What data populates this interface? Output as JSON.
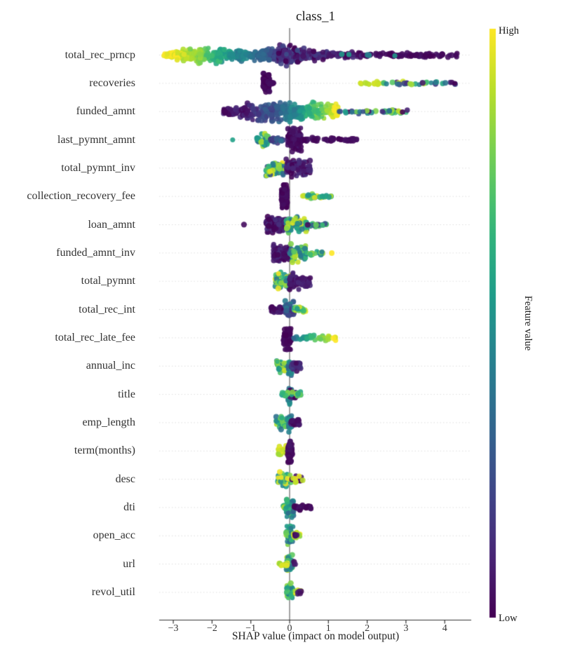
{
  "chart_data": {
    "type": "beeswarm",
    "title": "class_1",
    "xlabel": "SHAP value (impact on model output)",
    "x_ticks": [
      -3,
      -2,
      -1,
      0,
      1,
      2,
      3,
      4
    ],
    "x_tick_labels": [
      "−3",
      "−2",
      "−1",
      "0",
      "1",
      "2",
      "3",
      "4"
    ],
    "x_range": [
      -3.36,
      4.68
    ],
    "grid": "dotted-horizontal",
    "zero_line": true,
    "colorbar": {
      "high": "High",
      "low": "Low",
      "label": "Feature value"
    },
    "colormap": [
      "#440154",
      "#482878",
      "#3e4989",
      "#31688e",
      "#26828e",
      "#1f9e89",
      "#35b779",
      "#6ece58",
      "#b5de2b",
      "#fde725"
    ],
    "cluster_format": "[shap_min, shap_max, n_points, vertical_spread_px, color_t_min, color_t_max, mode(r=random,g=gradient-with-x)]",
    "features": [
      {
        "name": "total_rec_prncp",
        "clusters": [
          [
            -3.25,
            -2.8,
            35,
            3.5,
            1.0,
            0.92,
            "g"
          ],
          [
            -2.9,
            -2.3,
            70,
            7,
            0.97,
            0.75,
            "g"
          ],
          [
            -2.4,
            -1.75,
            80,
            9,
            0.85,
            0.55,
            "g"
          ],
          [
            -1.85,
            -1.2,
            70,
            8,
            0.65,
            0.4,
            "g"
          ],
          [
            -1.3,
            -0.65,
            55,
            6.5,
            0.5,
            0.25,
            "g"
          ],
          [
            -0.75,
            -0.2,
            60,
            8,
            0.35,
            0.12,
            "g"
          ],
          [
            -0.3,
            0.3,
            110,
            12,
            0.0,
            0.25,
            "r"
          ],
          [
            0.3,
            1.0,
            60,
            7,
            0.0,
            0.2,
            "r"
          ],
          [
            1.0,
            1.9,
            45,
            4,
            0.0,
            0.12,
            "r"
          ],
          [
            1.9,
            4.35,
            90,
            2.2,
            0.0,
            0.06,
            "r"
          ],
          [
            1.3,
            3.3,
            6,
            2,
            0.35,
            0.55,
            "r"
          ]
        ]
      },
      {
        "name": "recoveries",
        "clusters": [
          [
            -0.68,
            -0.52,
            90,
            11,
            0.0,
            0.04,
            "r"
          ],
          [
            -0.52,
            -0.33,
            12,
            2,
            0.0,
            0.04,
            "r"
          ],
          [
            1.82,
            2.4,
            14,
            2.2,
            0.85,
            1.0,
            "r"
          ],
          [
            2.4,
            4.3,
            34,
            2.2,
            0.0,
            1.0,
            "r"
          ]
        ]
      },
      {
        "name": "funded_amnt",
        "clusters": [
          [
            -1.75,
            -1.1,
            45,
            5.5,
            0.0,
            0.12,
            "r"
          ],
          [
            -1.2,
            -0.45,
            80,
            9.5,
            0.05,
            0.3,
            "g"
          ],
          [
            -0.5,
            0.15,
            90,
            11,
            0.2,
            0.5,
            "g"
          ],
          [
            0.1,
            0.75,
            80,
            10.5,
            0.4,
            0.8,
            "g"
          ],
          [
            0.7,
            1.25,
            55,
            8,
            0.7,
            1.0,
            "g"
          ],
          [
            1.25,
            3.1,
            40,
            2.4,
            0.0,
            1.0,
            "r"
          ]
        ]
      },
      {
        "name": "last_pymnt_amnt",
        "clusters": [
          [
            -1.47,
            -1.43,
            1,
            0.5,
            0.55,
            0.6,
            "r"
          ],
          [
            -0.85,
            -0.5,
            45,
            8,
            0.35,
            1.0,
            "r"
          ],
          [
            -0.5,
            -0.1,
            30,
            3,
            0.08,
            0.35,
            "r"
          ],
          [
            -0.05,
            0.3,
            100,
            13,
            0.0,
            0.08,
            "r"
          ],
          [
            0.3,
            1.8,
            55,
            2.4,
            0.0,
            0.05,
            "r"
          ]
        ]
      },
      {
        "name": "total_pymnt_inv",
        "clusters": [
          [
            -0.62,
            -0.1,
            70,
            10,
            0.25,
            1.0,
            "r"
          ],
          [
            -0.1,
            0.55,
            85,
            11,
            0.0,
            0.15,
            "r"
          ]
        ]
      },
      {
        "name": "collection_recovery_fee",
        "clusters": [
          [
            -0.22,
            -0.06,
            75,
            12.5,
            0.0,
            0.05,
            "r"
          ],
          [
            0.33,
            1.08,
            26,
            2.4,
            0.45,
            1.0,
            "r"
          ]
        ]
      },
      {
        "name": "loan_amnt",
        "clusters": [
          [
            -1.18,
            -1.14,
            1,
            0.5,
            0.0,
            0.05,
            "r"
          ],
          [
            -0.62,
            -0.1,
            90,
            10,
            0.0,
            0.15,
            "r"
          ],
          [
            -0.1,
            0.45,
            80,
            10,
            0.3,
            1.0,
            "r"
          ],
          [
            0.45,
            0.95,
            22,
            2.4,
            0.0,
            0.8,
            "r"
          ]
        ]
      },
      {
        "name": "funded_amnt_inv",
        "clusters": [
          [
            -0.42,
            0.0,
            90,
            11,
            0.0,
            0.15,
            "r"
          ],
          [
            0.0,
            0.42,
            70,
            10,
            0.3,
            0.95,
            "r"
          ],
          [
            0.42,
            0.88,
            18,
            2.4,
            0.4,
            1.0,
            "r"
          ],
          [
            1.08,
            1.12,
            1,
            0.5,
            0.95,
            1.0,
            "r"
          ]
        ]
      },
      {
        "name": "total_pymnt",
        "clusters": [
          [
            -0.38,
            0.05,
            60,
            10,
            0.35,
            1.0,
            "r"
          ],
          [
            0.0,
            0.55,
            70,
            9,
            0.0,
            0.12,
            "r"
          ]
        ]
      },
      {
        "name": "total_rec_int",
        "clusters": [
          [
            -0.48,
            -0.12,
            40,
            3.5,
            0.0,
            0.1,
            "r"
          ],
          [
            -0.12,
            0.12,
            55,
            10,
            0.05,
            0.45,
            "r"
          ],
          [
            0.1,
            0.42,
            24,
            3.5,
            0.5,
            1.0,
            "r"
          ]
        ]
      },
      {
        "name": "total_rec_late_fee",
        "clusters": [
          [
            -0.16,
            0.04,
            80,
            13,
            0.0,
            0.05,
            "r"
          ],
          [
            0.06,
            1.2,
            40,
            2.4,
            0.35,
            1.0,
            "g"
          ]
        ]
      },
      {
        "name": "annual_inc",
        "clusters": [
          [
            -0.34,
            0.0,
            40,
            7,
            0.4,
            0.95,
            "r"
          ],
          [
            -0.04,
            0.06,
            25,
            11,
            0.3,
            0.6,
            "r"
          ],
          [
            0.02,
            0.28,
            28,
            5.5,
            0.0,
            0.2,
            "r"
          ]
        ]
      },
      {
        "name": "title",
        "clusters": [
          [
            -0.05,
            0.05,
            30,
            11,
            0.3,
            0.6,
            "r"
          ],
          [
            -0.02,
            0.2,
            22,
            4.5,
            0.0,
            0.12,
            "r"
          ],
          [
            0.05,
            0.3,
            14,
            3.5,
            0.55,
            0.85,
            "r"
          ],
          [
            -0.2,
            -0.04,
            10,
            3.5,
            0.4,
            0.8,
            "r"
          ]
        ]
      },
      {
        "name": "emp_length",
        "clusters": [
          [
            -0.35,
            0.02,
            45,
            7.5,
            0.35,
            0.95,
            "r"
          ],
          [
            -0.03,
            0.06,
            20,
            11,
            0.25,
            0.55,
            "r"
          ],
          [
            0.02,
            0.26,
            22,
            5,
            0.0,
            0.15,
            "r"
          ]
        ]
      },
      {
        "name": "term(months)",
        "clusters": [
          [
            -0.3,
            -0.04,
            28,
            6,
            0.85,
            1.0,
            "r"
          ],
          [
            -0.05,
            0.07,
            55,
            12.5,
            0.0,
            0.08,
            "r"
          ]
        ]
      },
      {
        "name": "desc",
        "clusters": [
          [
            -0.3,
            0.04,
            45,
            9,
            0.45,
            1.0,
            "r"
          ],
          [
            0.06,
            0.32,
            16,
            3.2,
            0.0,
            0.1,
            "r"
          ],
          [
            0.06,
            0.34,
            6,
            3.2,
            0.85,
            1.0,
            "r"
          ]
        ]
      },
      {
        "name": "dti",
        "clusters": [
          [
            -0.08,
            0.1,
            55,
            11,
            0.3,
            0.8,
            "r"
          ],
          [
            0.1,
            0.56,
            30,
            2.6,
            0.0,
            0.06,
            "r"
          ],
          [
            -0.2,
            -0.08,
            8,
            3,
            0.4,
            0.9,
            "r"
          ]
        ]
      },
      {
        "name": "open_acc",
        "clusters": [
          [
            -0.09,
            0.09,
            50,
            10.5,
            0.3,
            0.85,
            "r"
          ],
          [
            0.09,
            0.3,
            16,
            4,
            0.8,
            1.0,
            "r"
          ],
          [
            0.12,
            0.22,
            5,
            2.5,
            0.0,
            0.1,
            "r"
          ]
        ]
      },
      {
        "name": "url",
        "clusters": [
          [
            -0.08,
            0.08,
            45,
            10,
            0.35,
            0.9,
            "r"
          ],
          [
            -0.28,
            -0.06,
            18,
            2.8,
            0.8,
            1.0,
            "r"
          ],
          [
            0.1,
            0.18,
            3,
            2,
            0.0,
            0.1,
            "r"
          ]
        ]
      },
      {
        "name": "revol_util",
        "clusters": [
          [
            -0.08,
            0.09,
            48,
            10,
            0.3,
            0.85,
            "r"
          ],
          [
            0.1,
            0.3,
            10,
            2.8,
            0.85,
            1.0,
            "r"
          ],
          [
            0.18,
            0.3,
            5,
            2.5,
            0.0,
            0.1,
            "r"
          ]
        ]
      }
    ]
  },
  "style_colors": {
    "zero_line": "#999999",
    "gridline": "#dedede",
    "axis": "#333333",
    "text": "#2b2b2b"
  }
}
